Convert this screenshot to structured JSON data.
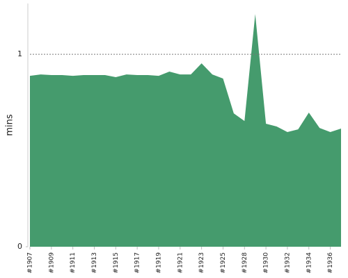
{
  "chart_data": {
    "type": "area",
    "y_label": "mins",
    "categories": [
      "#1907",
      null,
      "#1909",
      null,
      "#1911",
      null,
      "#1913",
      null,
      "#1915",
      null,
      "#1917",
      null,
      "#1919",
      null,
      "#1921",
      null,
      "#1923",
      null,
      "#1925",
      null,
      "#1928",
      null,
      "#1930",
      null,
      "#1932",
      null,
      "#1934",
      null,
      "#1936",
      null
    ],
    "values": [
      0.888,
      0.895,
      0.892,
      0.892,
      0.888,
      0.892,
      0.892,
      0.892,
      0.881,
      0.895,
      0.892,
      0.892,
      0.888,
      0.91,
      0.895,
      0.895,
      0.953,
      0.895,
      0.874,
      0.693,
      0.653,
      1.209,
      0.639,
      0.625,
      0.596,
      0.61,
      0.697,
      0.617,
      0.596,
      0.614
    ],
    "color": "#459b6d",
    "ylim": [
      0,
      1.264
    ],
    "yticks": [
      0,
      1
    ],
    "grid": true
  }
}
